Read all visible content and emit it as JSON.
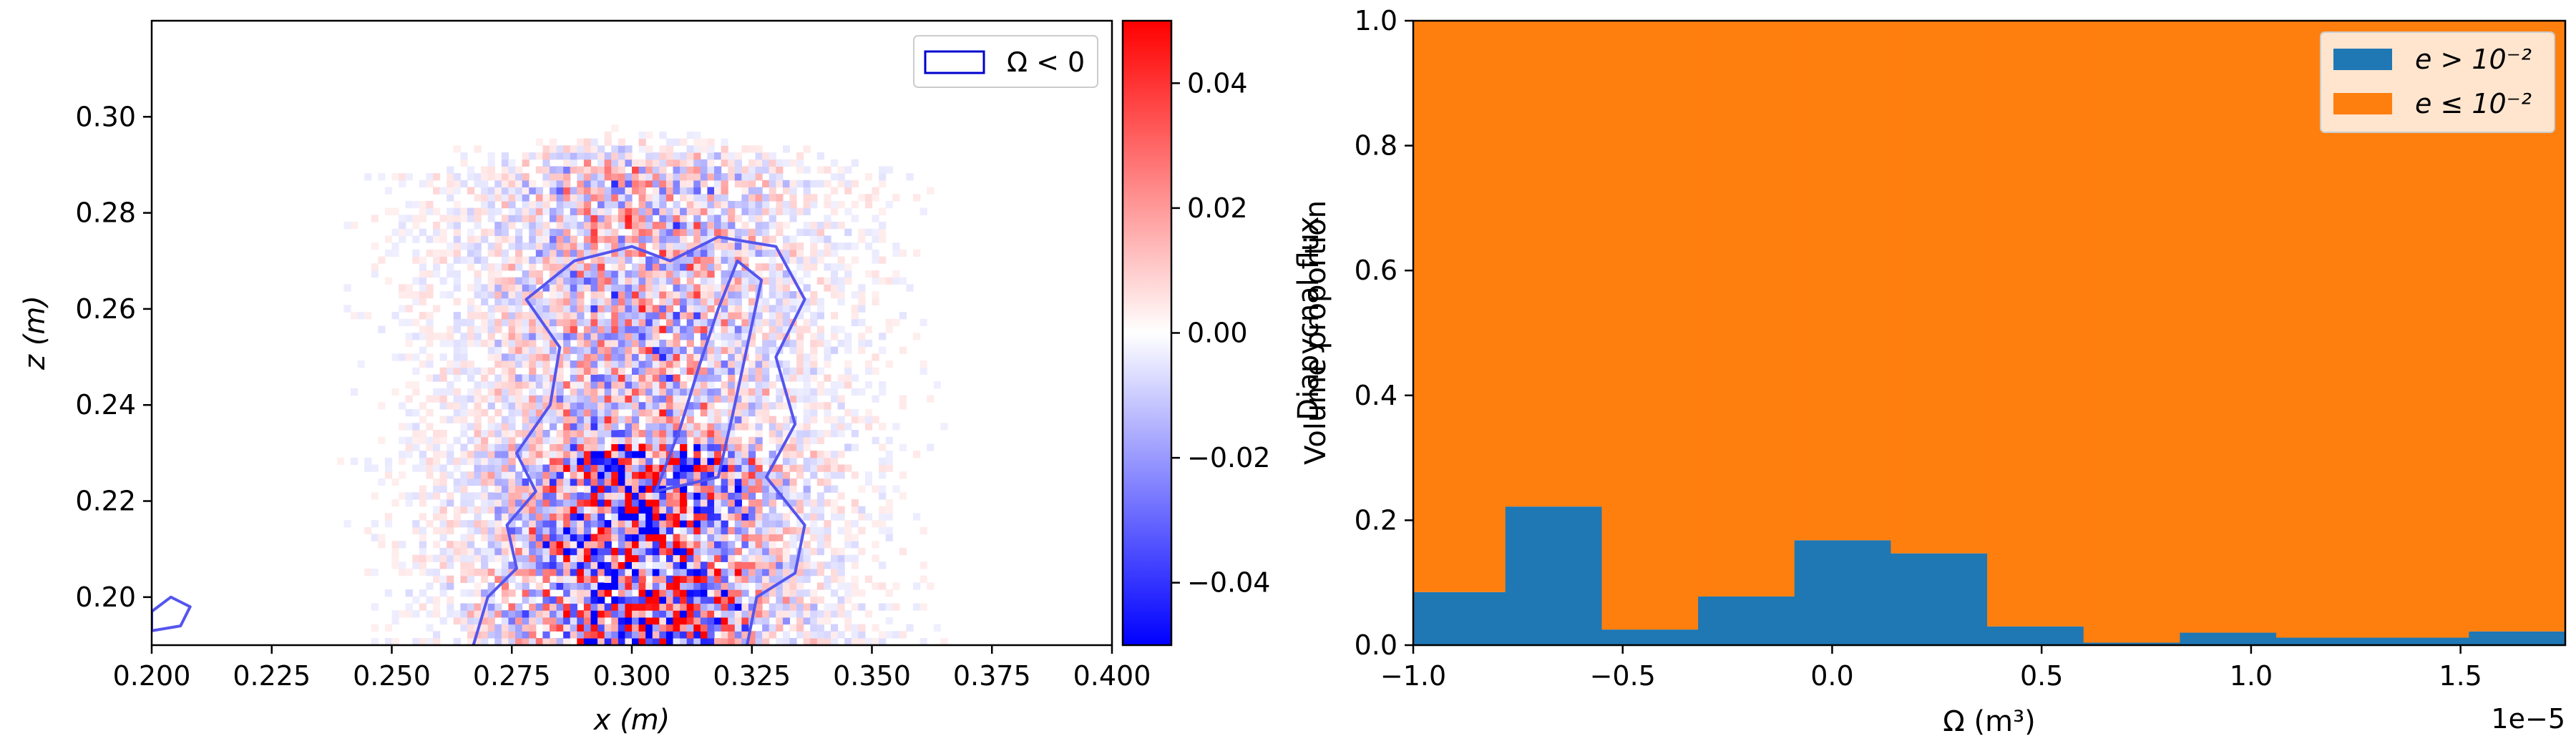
{
  "chart_data": [
    {
      "type": "heatmap",
      "xlabel": "x (m)",
      "ylabel": "z (m)",
      "xlim": [
        0.2,
        0.4
      ],
      "ylim": [
        0.19,
        0.32
      ],
      "xticks": [
        0.2,
        0.225,
        0.25,
        0.275,
        0.3,
        0.325,
        0.35,
        0.375,
        0.4
      ],
      "xtick_labels": [
        "0.200",
        "0.225",
        "0.250",
        "0.275",
        "0.300",
        "0.325",
        "0.350",
        "0.375",
        "0.400"
      ],
      "yticks": [
        0.2,
        0.22,
        0.24,
        0.26,
        0.28,
        0.3
      ],
      "ytick_labels": [
        "0.20",
        "0.22",
        "0.24",
        "0.26",
        "0.28",
        "0.30"
      ],
      "legend": {
        "entries": [
          "Ω < 0"
        ],
        "location": "top-right",
        "colors": [
          "#0000cc"
        ]
      },
      "colorbar": {
        "range": [
          -0.05,
          0.05
        ],
        "ticks": [
          0.04,
          0.02,
          0.0,
          -0.02,
          -0.04
        ],
        "tick_labels": [
          "0.04",
          "0.02",
          "0.00",
          "−0.02",
          "−0.04"
        ],
        "colors": [
          "#0000ff",
          "#ffffff",
          "#ff0000"
        ]
      },
      "contour_color": "#5555ee",
      "contour_outline": [
        [
          0.267,
          0.19
        ],
        [
          0.27,
          0.2
        ],
        [
          0.276,
          0.206
        ],
        [
          0.274,
          0.215
        ],
        [
          0.28,
          0.222
        ],
        [
          0.276,
          0.23
        ],
        [
          0.283,
          0.24
        ],
        [
          0.285,
          0.252
        ],
        [
          0.278,
          0.262
        ],
        [
          0.288,
          0.27
        ],
        [
          0.3,
          0.273
        ],
        [
          0.308,
          0.27
        ],
        [
          0.318,
          0.275
        ],
        [
          0.33,
          0.273
        ],
        [
          0.336,
          0.262
        ],
        [
          0.33,
          0.25
        ],
        [
          0.334,
          0.236
        ],
        [
          0.328,
          0.225
        ],
        [
          0.336,
          0.215
        ],
        [
          0.334,
          0.205
        ],
        [
          0.326,
          0.2
        ],
        [
          0.324,
          0.19
        ]
      ],
      "contour_inner": [
        [
          0.305,
          0.222
        ],
        [
          0.31,
          0.235
        ],
        [
          0.314,
          0.248
        ],
        [
          0.318,
          0.26
        ],
        [
          0.322,
          0.27
        ],
        [
          0.327,
          0.266
        ],
        [
          0.324,
          0.252
        ],
        [
          0.321,
          0.238
        ],
        [
          0.318,
          0.225
        ]
      ],
      "contour_small_left": [
        [
          0.2,
          0.197
        ],
        [
          0.204,
          0.2
        ],
        [
          0.208,
          0.198
        ],
        [
          0.206,
          0.194
        ],
        [
          0.2,
          0.193
        ]
      ]
    },
    {
      "type": "bar",
      "xlabel": "Ω (m³)",
      "ylabel": "Volume proportion",
      "ylabel_overlap": "Diapycnal flux",
      "x_offset_label": "1e−5",
      "xlim": [
        -1.0,
        1.75
      ],
      "ylim": [
        0.0,
        1.0
      ],
      "xticks": [
        -1.0,
        -0.5,
        0.0,
        0.5,
        1.0,
        1.5
      ],
      "xtick_labels": [
        "−1.0",
        "−0.5",
        "0.0",
        "0.5",
        "1.0",
        "1.5"
      ],
      "yticks": [
        0.0,
        0.2,
        0.4,
        0.6,
        0.8,
        1.0
      ],
      "ytick_labels": [
        "0.0",
        "0.2",
        "0.4",
        "0.6",
        "0.8",
        "1.0"
      ],
      "bin_edges": [
        -1.0,
        -0.78,
        -0.55,
        -0.32,
        -0.09,
        0.14,
        0.37,
        0.6,
        0.83,
        1.06,
        1.29,
        1.52,
        1.75
      ],
      "series": [
        {
          "name": "e > 10⁻²",
          "color": "#1f77b4",
          "values": [
            0.085,
            0.222,
            0.025,
            0.078,
            0.168,
            0.147,
            0.03,
            0.004,
            0.02,
            0.012,
            0.012,
            0.022
          ]
        },
        {
          "name": "e ≤ 10⁻²",
          "color": "#ff7f0e",
          "values": [
            0.915,
            0.778,
            0.975,
            0.922,
            0.832,
            0.853,
            0.97,
            0.996,
            0.98,
            0.988,
            0.988,
            0.978
          ]
        }
      ],
      "legend": {
        "location": "top-right"
      }
    }
  ]
}
